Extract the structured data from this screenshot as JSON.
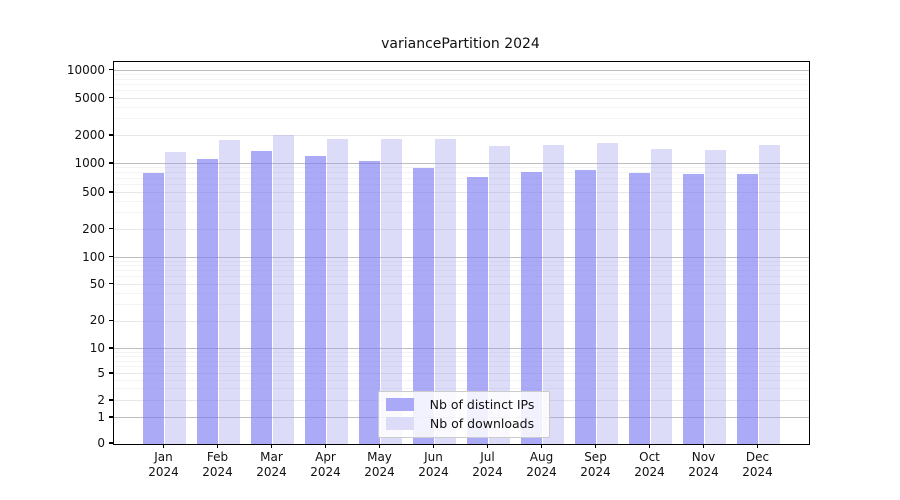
{
  "chart_data": {
    "type": "bar",
    "title": "variancePartition 2024",
    "categories": [
      "Jan",
      "Feb",
      "Mar",
      "Apr",
      "May",
      "Jun",
      "Jul",
      "Aug",
      "Sep",
      "Oct",
      "Nov",
      "Dec"
    ],
    "year": "2024",
    "series": [
      {
        "name": "Nb of distinct IPs",
        "color": "#a9a9f7",
        "fill": "rgba(124,124,243,0.65)",
        "values": [
          810,
          1130,
          1390,
          1230,
          1080,
          900,
          740,
          830,
          870,
          810,
          780,
          780
        ]
      },
      {
        "name": "Nb of downloads",
        "color": "#dcdcf8",
        "fill": "rgba(160,160,235,0.37)",
        "values": [
          1340,
          1810,
          2060,
          1870,
          1840,
          1860,
          1550,
          1610,
          1670,
          1450,
          1410,
          1610
        ]
      }
    ],
    "yticks": [
      0,
      1,
      2,
      5,
      10,
      20,
      50,
      100,
      200,
      500,
      1000,
      2000,
      5000,
      10000
    ],
    "ylim": [
      0,
      14000
    ],
    "scale": "log-like with 0 baseline",
    "grid": true,
    "legend_position": "bottom-center-inside",
    "xlabel": "",
    "ylabel": ""
  }
}
